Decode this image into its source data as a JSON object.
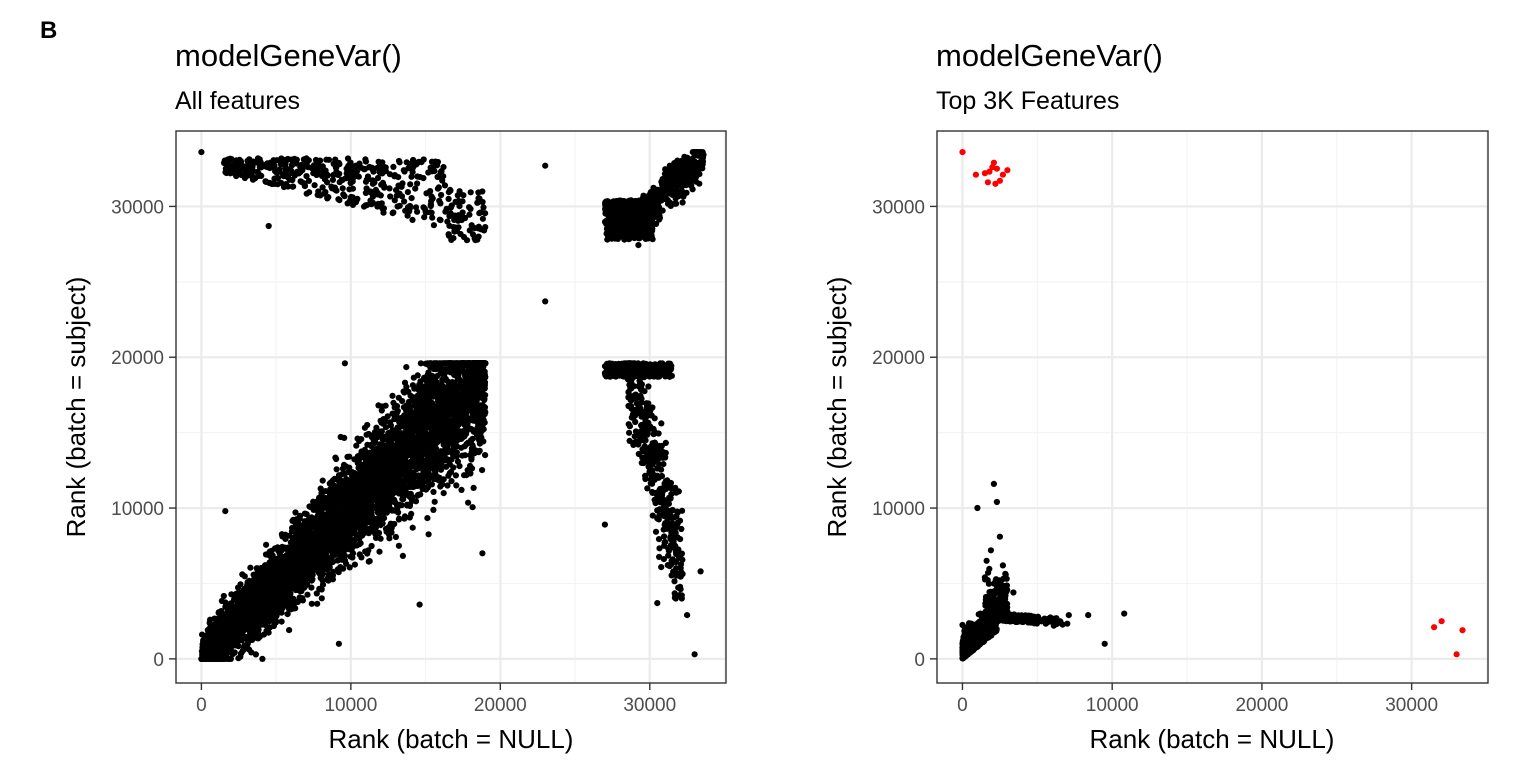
{
  "figure": {
    "panel_letter": "B"
  },
  "chart_data": [
    {
      "type": "scatter",
      "title": "modelGeneVar()",
      "subtitle": "All features",
      "xlabel": "Rank (batch = NULL)",
      "ylabel": "Rank (batch = subject)",
      "xlim": [
        -1700,
        35100
      ],
      "ylim": [
        -1600,
        35000
      ],
      "x_ticks": [
        0,
        10000,
        20000,
        30000
      ],
      "x_tick_labels": [
        "0",
        "10000",
        "20000",
        "30000"
      ],
      "y_ticks": [
        0,
        10000,
        20000,
        30000
      ],
      "y_tick_labels": [
        "0",
        "10000",
        "20000",
        "30000"
      ],
      "grid": true,
      "point_color": "#000000",
      "series": [
        {
          "description_of_clusters": [
            "diagonal",
            "top-left band",
            "top-right",
            "bottom-right",
            "isolated"
          ],
          "points": [
            [
              0,
              33600
            ],
            [
              4500,
              28700
            ],
            [
              9600,
              19600
            ],
            [
              23000,
              32700
            ],
            [
              23000,
              23700
            ],
            [
              33000,
              300
            ],
            [
              33400,
              5800
            ],
            [
              32500,
              2900
            ],
            [
              30500,
              3700
            ],
            [
              27000,
              8900
            ],
            [
              18800,
              7000
            ],
            [
              9200,
              1000
            ],
            [
              14600,
              3600
            ],
            [
              1600,
              9800
            ]
          ],
          "clusters": [
            {
              "kind": "diagonal",
              "x": [
                0,
                19000
              ],
              "slope": 1.0,
              "spread": 1800,
              "n": 5200,
              "ymax": 19600
            },
            {
              "kind": "box",
              "x": [
                1500,
                19000
              ],
              "y": [
                27600,
                33200
              ],
              "density": "top-band",
              "n": 520
            },
            {
              "kind": "corner",
              "x": [
                27000,
                33600
              ],
              "y": [
                27800,
                33600
              ],
              "n": 900
            },
            {
              "kind": "drop",
              "x": [
                27000,
                32500
              ],
              "y": [
                4000,
                19600
              ],
              "n": 700
            }
          ]
        }
      ]
    },
    {
      "type": "scatter",
      "title": "modelGeneVar()",
      "subtitle": "Top 3K Features",
      "xlabel": "Rank (batch = NULL)",
      "ylabel": "Rank (batch = subject)",
      "xlim": [
        -1700,
        35100
      ],
      "ylim": [
        -1600,
        35000
      ],
      "x_ticks": [
        0,
        10000,
        20000,
        30000
      ],
      "x_tick_labels": [
        "0",
        "10000",
        "20000",
        "30000"
      ],
      "y_ticks": [
        0,
        10000,
        20000,
        30000
      ],
      "y_tick_labels": [
        "0",
        "10000",
        "20000",
        "30000"
      ],
      "grid": true,
      "colors": {
        "normal": "#000000",
        "highlight": "#ff0000"
      },
      "series": [
        {
          "group": "normal",
          "points": [
            [
              2100,
              11600
            ],
            [
              2300,
              10400
            ],
            [
              1000,
              10000
            ],
            [
              2500,
              8100
            ],
            [
              1900,
              7200
            ],
            [
              7100,
              2900
            ],
            [
              8400,
              2900
            ],
            [
              10800,
              3000
            ],
            [
              9500,
              1000
            ],
            [
              6100,
              2200
            ],
            [
              3400,
              4400
            ],
            [
              2700,
              6200
            ],
            [
              1500,
              5400
            ]
          ],
          "clusters": [
            {
              "kind": "l-shape",
              "x": [
                0,
                3000
              ],
              "y": [
                0,
                3000
              ],
              "n": 900
            },
            {
              "kind": "vertical-arm",
              "x": [
                1500,
                3000
              ],
              "y": [
                2500,
                6500
              ],
              "n": 220
            },
            {
              "kind": "horizontal-arm",
              "x": [
                2800,
                7000
              ],
              "y": [
                1800,
                3000
              ],
              "n": 160
            }
          ]
        },
        {
          "group": "highlight",
          "points": [
            [
              0,
              33600
            ],
            [
              900,
              32100
            ],
            [
              1800,
              32300
            ],
            [
              2100,
              32900
            ],
            [
              2300,
              32500
            ],
            [
              2700,
              32100
            ],
            [
              3000,
              32400
            ],
            [
              1700,
              31600
            ],
            [
              2200,
              31500
            ],
            [
              2500,
              31700
            ],
            [
              1500,
              32200
            ],
            [
              2000,
              32600
            ],
            [
              32000,
              2500
            ],
            [
              31500,
              2100
            ],
            [
              33400,
              1900
            ],
            [
              33000,
              300
            ]
          ]
        }
      ]
    }
  ]
}
